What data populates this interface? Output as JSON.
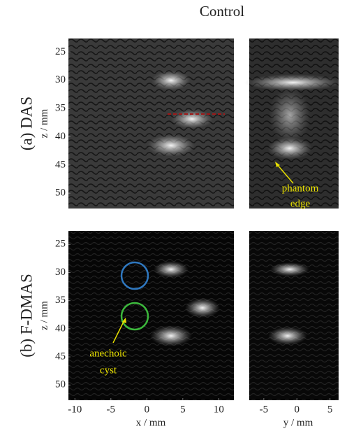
{
  "title": "Control",
  "rows": [
    {
      "label": "(a) DAS"
    },
    {
      "label": "(b) F-DMAS"
    }
  ],
  "z_axis": {
    "label": "z / mm",
    "lim": [
      22.6,
      52.7
    ],
    "ticks": [
      25,
      30,
      35,
      40,
      45,
      50
    ]
  },
  "x_axis": {
    "label": "x / mm",
    "lim": [
      -10.9,
      12.1
    ],
    "ticks": [
      -10,
      -5,
      0,
      5,
      10
    ]
  },
  "y_axis": {
    "label": "y / mm",
    "lim": [
      -7.2,
      6.3
    ],
    "ticks": [
      -5,
      0,
      5
    ]
  },
  "annotations": {
    "phantom_edge": [
      "phantom",
      "edge"
    ],
    "anechoic_cyst": [
      "anechoic",
      "cyst"
    ]
  }
}
